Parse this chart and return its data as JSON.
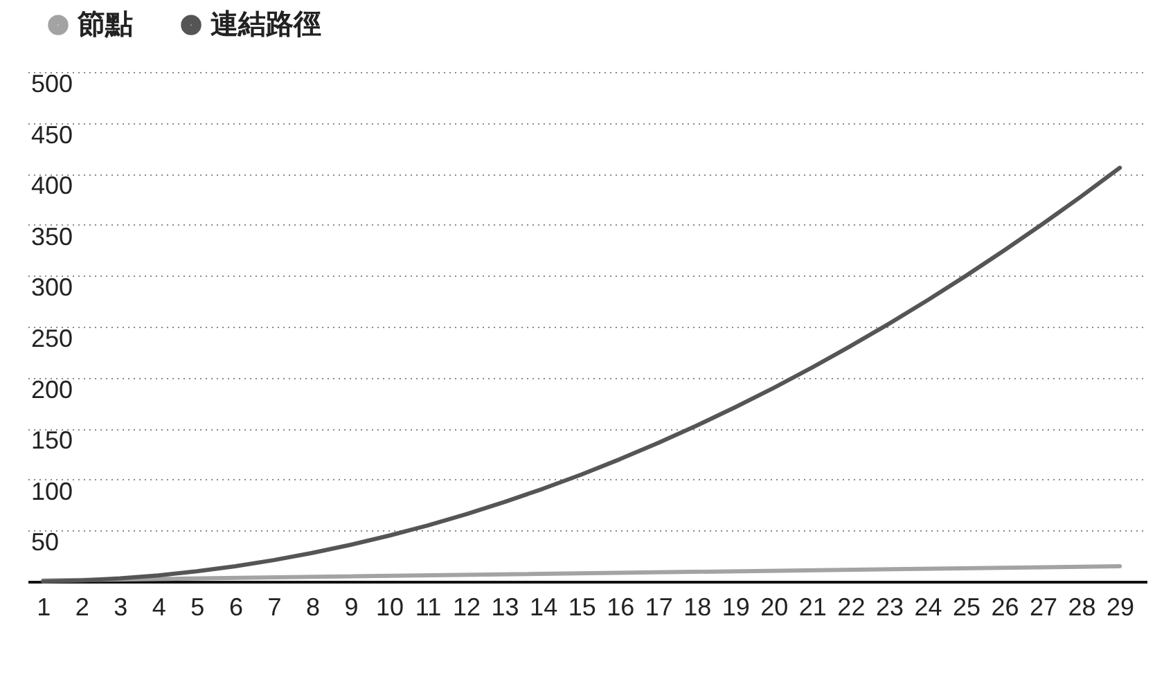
{
  "chart_data": {
    "type": "line",
    "x": [
      1,
      2,
      3,
      4,
      5,
      6,
      7,
      8,
      9,
      10,
      11,
      12,
      13,
      14,
      15,
      16,
      17,
      18,
      19,
      20,
      21,
      22,
      23,
      24,
      25,
      26,
      27,
      28,
      29
    ],
    "series": [
      {
        "name": "節點",
        "color": "#a3a3a3",
        "x": [
          1,
          29
        ],
        "values": [
          1,
          15
        ]
      },
      {
        "name": "連結路徑",
        "color": "#555555",
        "values": [
          0,
          1,
          3,
          6,
          10,
          15,
          21,
          28,
          36,
          45,
          55,
          66,
          78,
          91,
          105,
          120,
          136,
          153,
          171,
          190,
          210,
          231,
          253,
          276,
          300,
          325,
          351,
          378,
          406
        ]
      }
    ],
    "xlim": [
      0.6,
      29.7
    ],
    "xticks": [
      1,
      2,
      3,
      4,
      5,
      6,
      7,
      8,
      9,
      10,
      11,
      12,
      13,
      14,
      15,
      16,
      17,
      18,
      19,
      20,
      21,
      22,
      23,
      24,
      25,
      26,
      27,
      28,
      29
    ],
    "ylim": [
      0,
      500
    ],
    "yticks": [
      50,
      100,
      150,
      200,
      250,
      300,
      350,
      400,
      450,
      500
    ],
    "grid": "y",
    "legend": "top left",
    "line_style": "solid"
  }
}
